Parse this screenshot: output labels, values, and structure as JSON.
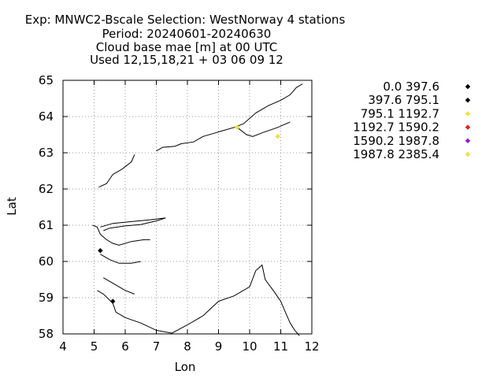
{
  "chart_data": {
    "type": "scatter",
    "title_lines": [
      "Exp: MNWC2-Bscale   Selection: WestNorway       4 stations",
      "Period: 20240601-20240630",
      "Cloud base mae [m] at  00 UTC",
      "Used 12,15,18,21 + 03 06 09 12"
    ],
    "xlabel": "Lon",
    "ylabel": "Lat",
    "xlim": [
      4,
      12
    ],
    "ylim": [
      58,
      65
    ],
    "x_ticks": [
      4,
      5,
      6,
      7,
      8,
      9,
      10,
      11,
      12
    ],
    "y_ticks": [
      58,
      59,
      60,
      61,
      62,
      63,
      64,
      65
    ],
    "grid": true,
    "legend_position": "right",
    "legend": [
      {
        "label": "0.0 397.6",
        "color": "#000000"
      },
      {
        "label": "397.6 795.1",
        "color": "#000000"
      },
      {
        "label": "795.1 1192.7",
        "color": "#f0e040"
      },
      {
        "label": "1192.7 1590.2",
        "color": "#e02020"
      },
      {
        "label": "1590.2 1987.8",
        "color": "#8a1ec8"
      },
      {
        "label": "1987.8 2385.4",
        "color": "#f0e040"
      }
    ],
    "points": [
      {
        "lon": 5.2,
        "lat": 60.3,
        "bin": 1
      },
      {
        "lon": 5.6,
        "lat": 58.9,
        "bin": 1
      },
      {
        "lon": 9.6,
        "lat": 63.7,
        "bin": 2
      },
      {
        "lon": 10.9,
        "lat": 63.45,
        "bin": 2
      }
    ],
    "coastline": [
      [
        [
          7.0,
          63.05
        ],
        [
          7.2,
          63.15
        ],
        [
          7.6,
          63.18
        ],
        [
          7.8,
          63.25
        ],
        [
          8.2,
          63.3
        ],
        [
          8.5,
          63.45
        ],
        [
          8.9,
          63.55
        ],
        [
          9.1,
          63.6
        ],
        [
          9.5,
          63.7
        ],
        [
          9.8,
          63.8
        ],
        [
          10.2,
          64.1
        ],
        [
          10.6,
          64.3
        ],
        [
          11.0,
          64.45
        ],
        [
          11.3,
          64.6
        ],
        [
          11.5,
          64.8
        ],
        [
          11.7,
          64.9
        ]
      ],
      [
        [
          9.6,
          63.7
        ],
        [
          9.9,
          63.5
        ],
        [
          10.1,
          63.45
        ],
        [
          10.4,
          63.55
        ],
        [
          10.9,
          63.7
        ],
        [
          11.3,
          63.85
        ]
      ],
      [
        [
          5.15,
          62.05
        ],
        [
          5.4,
          62.15
        ],
        [
          5.6,
          62.4
        ],
        [
          5.9,
          62.55
        ],
        [
          6.2,
          62.75
        ],
        [
          6.3,
          62.95
        ]
      ],
      [
        [
          5.2,
          60.95
        ],
        [
          5.6,
          61.05
        ],
        [
          6.2,
          61.1
        ],
        [
          6.8,
          61.15
        ],
        [
          7.3,
          61.2
        ],
        [
          7.0,
          61.12
        ],
        [
          6.5,
          61.02
        ],
        [
          6.0,
          60.98
        ],
        [
          5.5,
          60.92
        ],
        [
          5.3,
          60.85
        ]
      ],
      [
        [
          4.95,
          61.0
        ],
        [
          5.1,
          60.95
        ],
        [
          5.2,
          60.75
        ],
        [
          5.4,
          60.6
        ],
        [
          5.6,
          60.5
        ],
        [
          5.8,
          60.45
        ],
        [
          6.2,
          60.55
        ],
        [
          6.6,
          60.6
        ],
        [
          6.8,
          60.6
        ]
      ],
      [
        [
          5.2,
          60.2
        ],
        [
          5.5,
          60.05
        ],
        [
          5.8,
          59.95
        ],
        [
          6.2,
          59.95
        ],
        [
          6.5,
          60.0
        ]
      ],
      [
        [
          5.3,
          59.55
        ],
        [
          5.6,
          59.4
        ],
        [
          6.0,
          59.2
        ],
        [
          6.3,
          59.1
        ]
      ],
      [
        [
          5.1,
          59.2
        ],
        [
          5.3,
          59.1
        ],
        [
          5.6,
          58.85
        ],
        [
          5.7,
          58.6
        ],
        [
          6.0,
          58.45
        ],
        [
          6.5,
          58.3
        ],
        [
          7.0,
          58.1
        ],
        [
          7.5,
          58.02
        ],
        [
          8.0,
          58.25
        ],
        [
          8.5,
          58.5
        ],
        [
          9.0,
          58.9
        ],
        [
          9.5,
          59.05
        ],
        [
          10.0,
          59.3
        ],
        [
          10.2,
          59.75
        ],
        [
          10.4,
          59.9
        ],
        [
          10.5,
          59.5
        ],
        [
          10.8,
          59.15
        ],
        [
          11.0,
          58.9
        ],
        [
          11.15,
          58.6
        ],
        [
          11.3,
          58.3
        ],
        [
          11.45,
          58.1
        ],
        [
          11.6,
          57.95
        ]
      ]
    ]
  }
}
